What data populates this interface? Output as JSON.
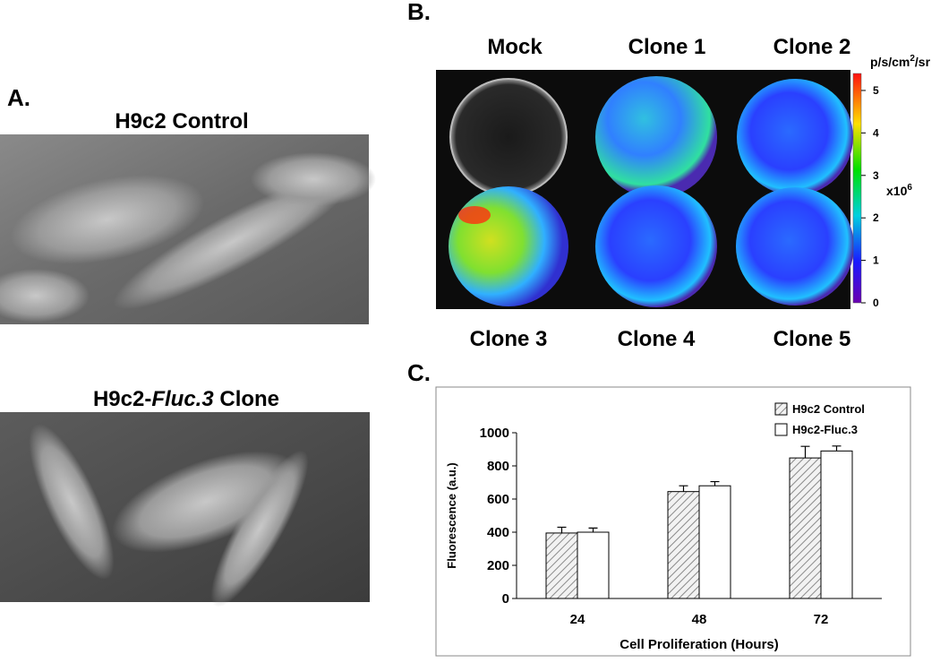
{
  "panel_a": {
    "label": "A.",
    "images": [
      {
        "title": "H9c2 Control"
      },
      {
        "title_parts": [
          "H9c2-",
          "Fluc.3",
          " Clone"
        ]
      }
    ]
  },
  "panel_b": {
    "label": "B.",
    "wells_top": [
      "Mock",
      "Clone 1",
      "Clone 2"
    ],
    "wells_bottom": [
      "Clone 3",
      "Clone 4",
      "Clone 5"
    ],
    "colorbar": {
      "unit_parts": [
        "p/s/cm",
        "2",
        "/sr"
      ],
      "multiplier_parts": [
        "x10",
        "6"
      ],
      "lim": [
        0,
        5.4
      ],
      "ticks": [
        0,
        1,
        2,
        3,
        4,
        5
      ]
    }
  },
  "chart_data": {
    "type": "bar",
    "label": "C.",
    "xlabel": "Cell Proliferation (Hours)",
    "ylabel": "Fluorescence (a.u.)",
    "categories": [
      "24",
      "48",
      "72"
    ],
    "series": [
      {
        "name": "H9c2 Control",
        "color": "#b0b0b0",
        "pattern": "hatch",
        "values": [
          395,
          645,
          848
        ],
        "errors": [
          35,
          35,
          70
        ]
      },
      {
        "name": "H9c2-Fluc.3",
        "color": "#ffffff",
        "pattern": "solid",
        "values": [
          400,
          680,
          890
        ],
        "errors": [
          25,
          25,
          30
        ]
      }
    ],
    "ylim": [
      0,
      1000
    ],
    "yticks": [
      0,
      200,
      400,
      600,
      800,
      1000
    ],
    "legend": "top-right"
  }
}
